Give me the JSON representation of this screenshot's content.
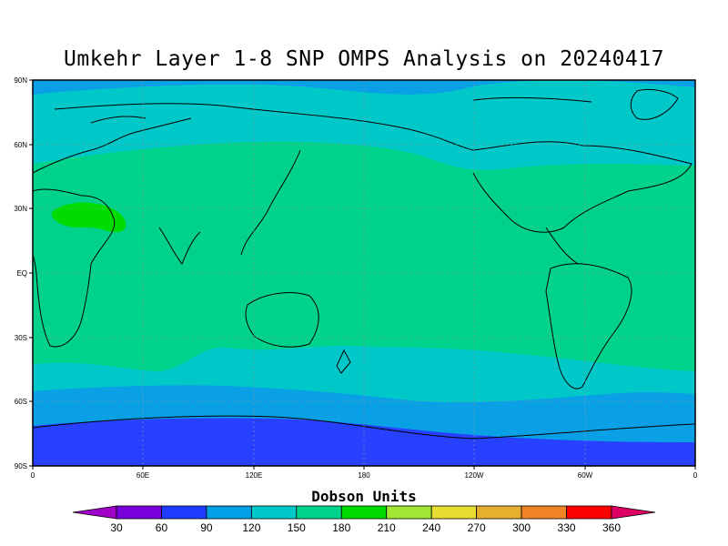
{
  "title": "Umkehr Layer 1-8 SNP OMPS Analysis on 20240417",
  "lat_labels": [
    "90N",
    "60N",
    "30N",
    "EQ",
    "30S",
    "60S",
    "90S"
  ],
  "lon_labels": [
    "0",
    "60E",
    "120E",
    "180",
    "120W",
    "60W",
    "0"
  ],
  "colorbar": {
    "title": "Dobson Units",
    "tick_labels": [
      "30",
      "60",
      "90",
      "120",
      "150",
      "180",
      "210",
      "240",
      "270",
      "300",
      "330",
      "360"
    ],
    "colors": [
      "#a000c8",
      "#7800dc",
      "#1e3cff",
      "#00a0e6",
      "#00c8c8",
      "#00d28c",
      "#00dc00",
      "#a0e632",
      "#e6dc32",
      "#e6af2d",
      "#f08228",
      "#fa0000",
      "#dc0064"
    ]
  },
  "legend_map": {
    "band_90_120": "#0aa0e6",
    "band_120_150": "#00c8c8",
    "band_150_180": "#00d28c",
    "band_180_210": "#00dc00",
    "band_60_90": "#2840ff"
  }
}
